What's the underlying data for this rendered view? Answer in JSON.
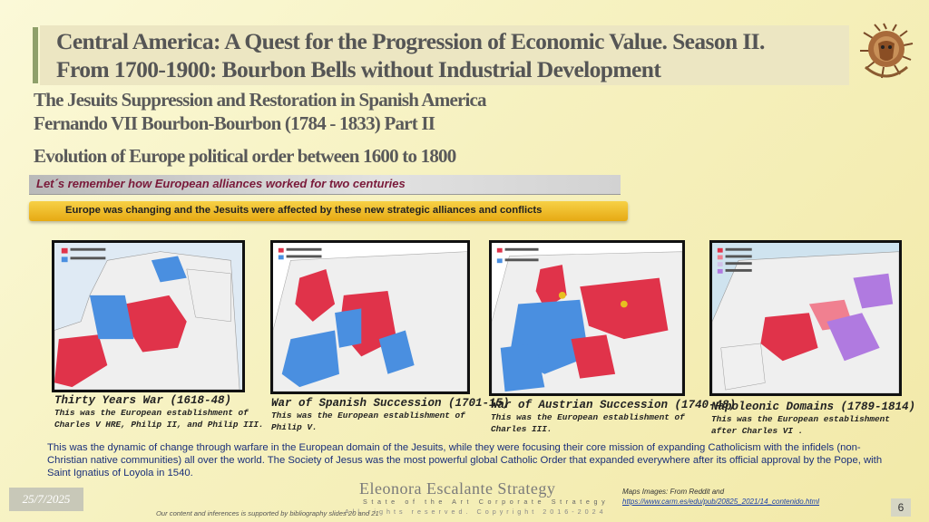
{
  "header": {
    "title_line1": "Central America:  A Quest for the Progression of  Economic Value. Season II.",
    "title_line2": "From 1700-1900: Bourbon Bells without Industrial Development",
    "logo_icon": "lion-logo-icon"
  },
  "subtitles": {
    "line1": "The Jesuits Suppression and Restoration in Spanish America",
    "line2": "Fernando VII Bourbon-Bourbon (1784 - 1833) Part II",
    "line3": "Evolution of  Europe political order between 1600 to 1800"
  },
  "banners": {
    "remember": "Let´s remember how European alliances worked for two centuries",
    "changing": "Europe was changing and the Jesuits were affected by these new strategic alliances and conflicts"
  },
  "maps": [
    {
      "title": "Thirty Years War  (1618-48)",
      "desc1": "This was the European establishment of",
      "desc2": "Charles V HRE, Philip II, and Philip III."
    },
    {
      "title": "War of Spanish Succession (1701-15)",
      "desc1": "This was the European establishment of",
      "desc2": "Philip V."
    },
    {
      "title": "War of Austrian Succession (1740-48)",
      "desc1": "This was the European establishment of",
      "desc2": "Charles III."
    },
    {
      "title": "Napoleonic Domains (1789-1814)",
      "desc1": "This was the European establishment",
      "desc2": "after Charles VI ."
    }
  ],
  "body_text": "This was the dynamic of change through warfare in the European domain of the Jesuits, while they were focusing their core mission of expanding Catholicism with the infidels (non-Christian native communities) all over the world. The Society of Jesus was the most powerful global Catholic Order that expanded everywhere after its official approval by the Pope, with Saint Ignatius of Loyola in 1540.",
  "footer": {
    "brand": "Eleonora Escalante Strategy",
    "brand_sub": "State of the Art Corporate Strategy",
    "rights": "All rights reserved. Copyright 2016-2024",
    "date": "25/7/2025",
    "biblio": "Our content and inferences is supported by bibliography slides 20 and 21",
    "maps_source": "Maps Images: From Reddit and",
    "maps_link": "https://www.carm.es/edu/pub/20825_2021/14_contenido.html",
    "page": "6"
  },
  "colors": {
    "catholic_red": "#e0334a",
    "protestant_blue": "#4a8fe0",
    "sea": "#ffffff",
    "land": "#efefef"
  }
}
